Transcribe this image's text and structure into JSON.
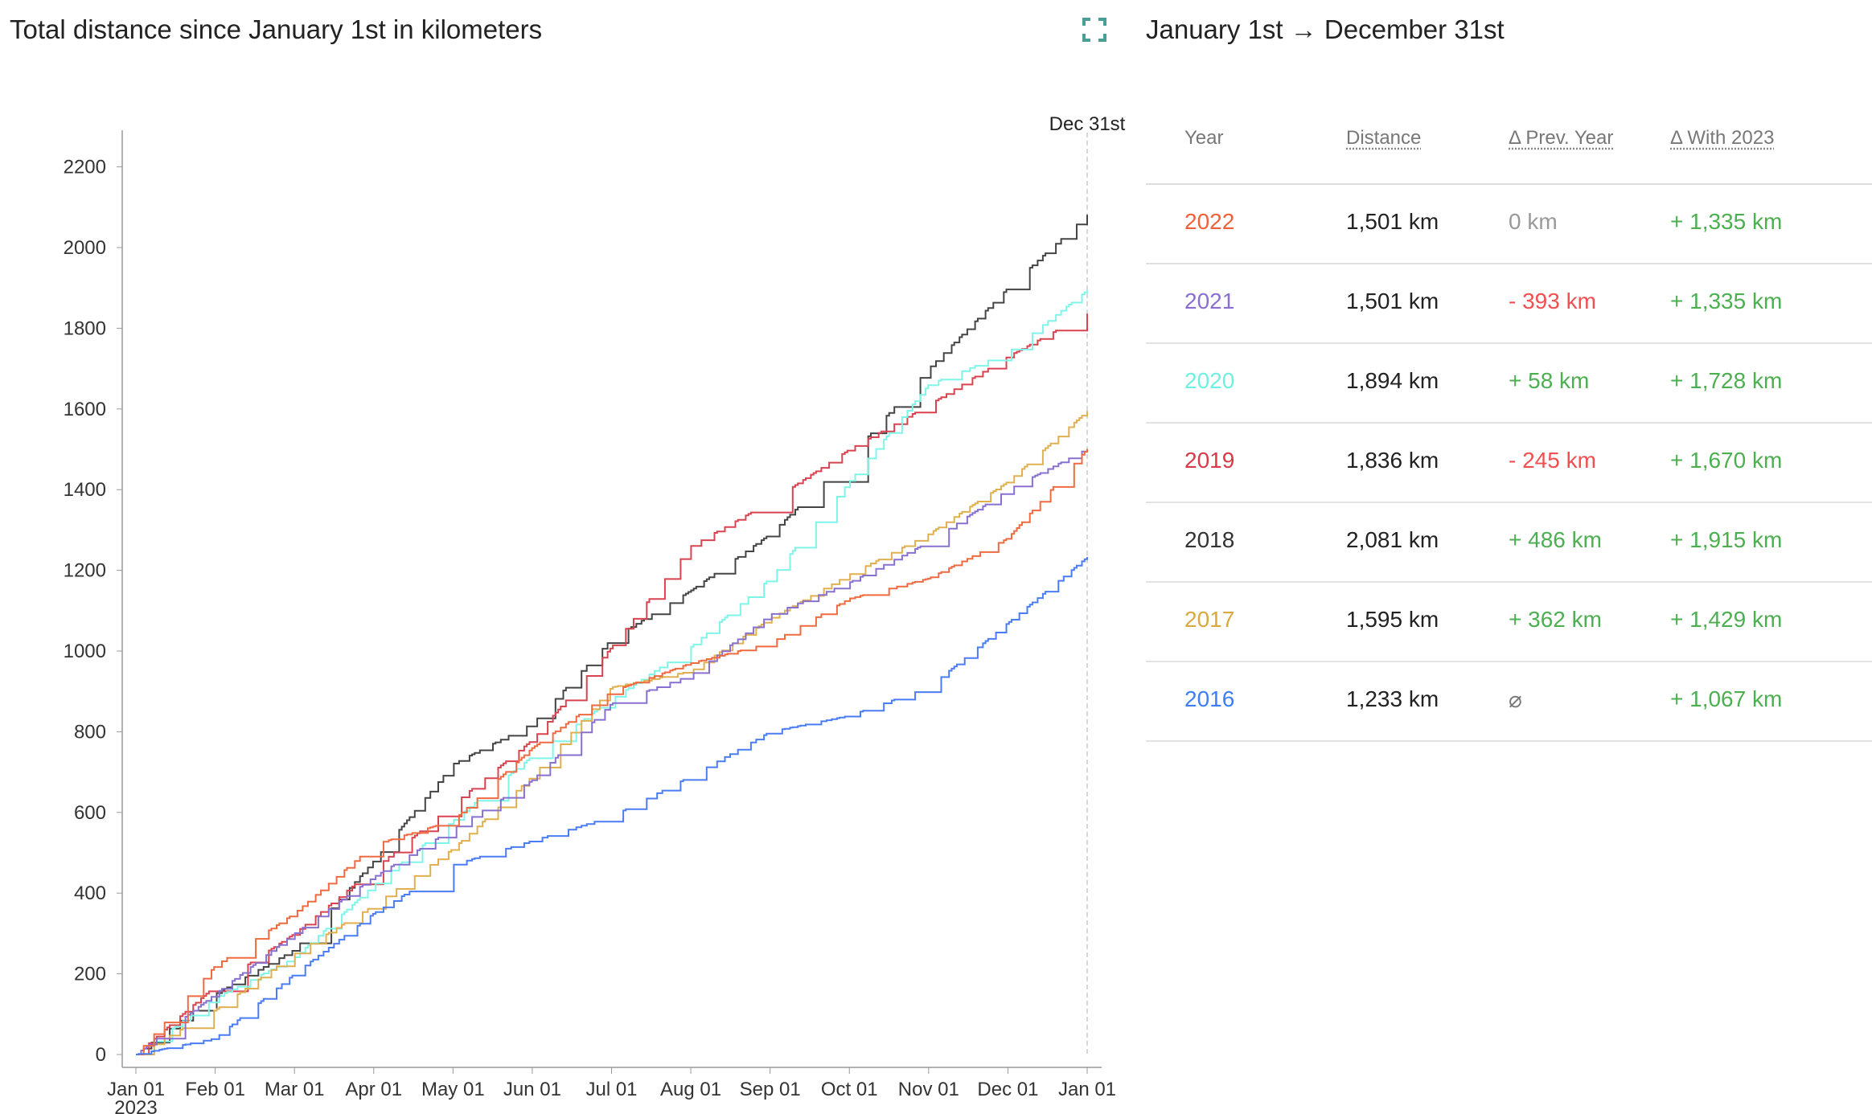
{
  "header": {
    "title": "Total distance since January 1st in kilometers",
    "range_title": "January 1st → December 31st",
    "expand_icon": "expand-icon",
    "expand_color": "#4a9f94"
  },
  "table": {
    "headers": [
      "Year",
      "Distance",
      "Δ Prev. Year",
      "Δ With 2023"
    ],
    "rows": [
      {
        "year": "2022",
        "distance": "1,501 km",
        "prev": "0 km",
        "with": "+ 1,335 km",
        "color": "#f0603a",
        "prev_color": "#999999"
      },
      {
        "year": "2021",
        "distance": "1,501 km",
        "prev": "- 393 km",
        "with": "+ 1,335 km",
        "color": "#8a6fd0",
        "prev_color": "#f05050"
      },
      {
        "year": "2020",
        "distance": "1,894 km",
        "prev": "+ 58 km",
        "with": "+ 1,728 km",
        "color": "#6ff0e0",
        "prev_color": "#4caf50"
      },
      {
        "year": "2019",
        "distance": "1,836 km",
        "prev": "- 245 km",
        "with": "+ 1,670 km",
        "color": "#d93a4a",
        "prev_color": "#f05050"
      },
      {
        "year": "2018",
        "distance": "2,081 km",
        "prev": "+ 486 km",
        "with": "+ 1,915 km",
        "color": "#333333",
        "prev_color": "#4caf50"
      },
      {
        "year": "2017",
        "distance": "1,595 km",
        "prev": "+ 362 km",
        "with": "+ 1,429 km",
        "color": "#d9a840",
        "prev_color": "#4caf50"
      },
      {
        "year": "2016",
        "distance": "1,233 km",
        "prev": "⌀",
        "with": "+ 1,067 km",
        "color": "#3d7ef5",
        "prev_color": "#777777"
      }
    ],
    "with_color": "#4caf50"
  },
  "chart_data": {
    "type": "line",
    "title": "Total distance since January 1st in kilometers",
    "x_ticks": [
      "Jan 01",
      "Feb 01",
      "Mar 01",
      "Apr 01",
      "May 01",
      "Jun 01",
      "Jul 01",
      "Aug 01",
      "Sep 01",
      "Oct 01",
      "Nov 01",
      "Dec 01",
      "Jan 01"
    ],
    "x_year_label": "2023",
    "y_ticks": [
      0,
      200,
      400,
      600,
      800,
      1000,
      1200,
      1400,
      1600,
      1800,
      2000,
      2200
    ],
    "ylim": [
      0,
      2300
    ],
    "marker_label": "Dec 31st",
    "grid": false,
    "series": [
      {
        "year": "2018",
        "color": "#444444",
        "values": [
          0,
          150,
          260,
          480,
          720,
          820,
          1030,
          1150,
          1290,
          1480,
          1700,
          1900,
          2081
        ]
      },
      {
        "year": "2019",
        "color": "#d9434f",
        "values": [
          0,
          170,
          300,
          460,
          620,
          780,
          1010,
          1260,
          1370,
          1500,
          1610,
          1730,
          1836
        ]
      },
      {
        "year": "2020",
        "color": "#7ff5e8",
        "values": [
          0,
          140,
          240,
          420,
          580,
          740,
          880,
          1010,
          1180,
          1420,
          1660,
          1740,
          1894
        ]
      },
      {
        "year": "2017",
        "color": "#e0b050",
        "values": [
          0,
          110,
          250,
          370,
          510,
          690,
          910,
          950,
          1080,
          1190,
          1290,
          1420,
          1595
        ]
      },
      {
        "year": "2021",
        "color": "#8870d0",
        "values": [
          0,
          150,
          300,
          440,
          560,
          680,
          870,
          940,
          1090,
          1170,
          1270,
          1400,
          1501
        ]
      },
      {
        "year": "2022",
        "color": "#f06a40",
        "values": [
          0,
          220,
          350,
          520,
          580,
          760,
          900,
          970,
          1020,
          1130,
          1180,
          1280,
          1501
        ]
      },
      {
        "year": "2016",
        "color": "#4a7cf5",
        "values": [
          0,
          40,
          200,
          350,
          470,
          530,
          590,
          690,
          800,
          840,
          910,
          1070,
          1233
        ]
      }
    ]
  }
}
